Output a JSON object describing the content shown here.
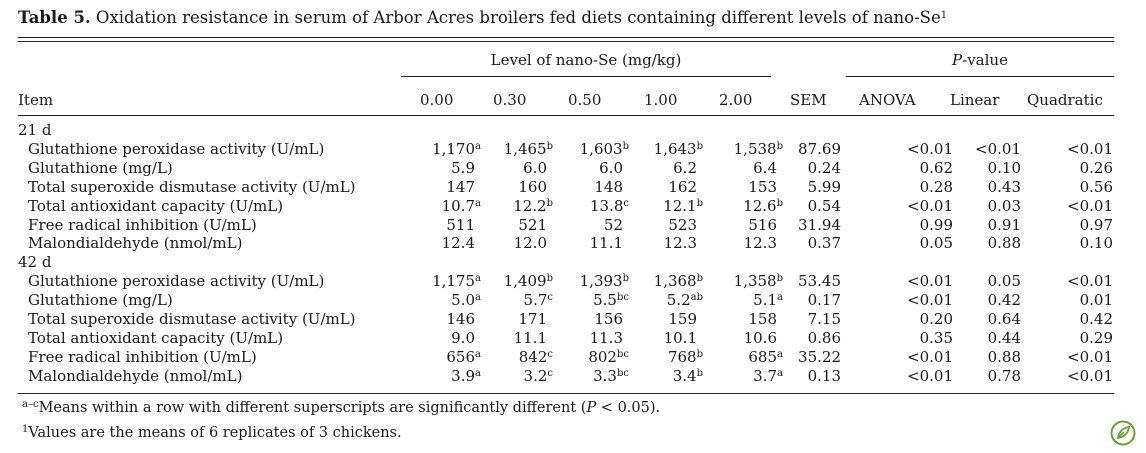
{
  "caption": {
    "label": "Table 5.",
    "text": "Oxidation resistance in serum of Arbor Acres broilers fed diets containing different levels of nano-Se",
    "sup": "1"
  },
  "header": {
    "group_level": "Level of nano-Se (mg/kg)",
    "group_p_italic": "P",
    "group_p_rest": "-value",
    "item": "Item",
    "levels": [
      "0.00",
      "0.30",
      "0.50",
      "1.00",
      "2.00"
    ],
    "sem": "SEM",
    "anova": "ANOVA",
    "linear": "Linear",
    "quadratic": "Quadratic"
  },
  "sections": [
    {
      "label": "21 d",
      "rows": [
        {
          "item": "Glutathione peroxidase activity (U/mL)",
          "v": [
            [
              "1,170",
              "a"
            ],
            [
              "1,465",
              "b"
            ],
            [
              "1,603",
              "b"
            ],
            [
              "1,643",
              "b"
            ],
            [
              "1,538",
              "b"
            ]
          ],
          "sem": "87.69",
          "anova": "<0.01",
          "linear": "<0.01",
          "quad": "<0.01"
        },
        {
          "item": "Glutathione (mg/L)",
          "v": [
            [
              "5.9",
              ""
            ],
            [
              "6.0",
              ""
            ],
            [
              "6.0",
              ""
            ],
            [
              "6.2",
              ""
            ],
            [
              "6.4",
              ""
            ]
          ],
          "sem": "0.24",
          "anova": "0.62",
          "linear": "0.10",
          "quad": "0.26"
        },
        {
          "item": "Total superoxide dismutase activity (U/mL)",
          "v": [
            [
              "147",
              ""
            ],
            [
              "160",
              ""
            ],
            [
              "148",
              ""
            ],
            [
              "162",
              ""
            ],
            [
              "153",
              ""
            ]
          ],
          "sem": "5.99",
          "anova": "0.28",
          "linear": "0.43",
          "quad": "0.56"
        },
        {
          "item": "Total antioxidant capacity (U/mL)",
          "v": [
            [
              "10.7",
              "a"
            ],
            [
              "12.2",
              "b"
            ],
            [
              "13.8",
              "c"
            ],
            [
              "12.1",
              "b"
            ],
            [
              "12.6",
              "b"
            ]
          ],
          "sem": "0.54",
          "anova": "<0.01",
          "linear": "0.03",
          "quad": "<0.01"
        },
        {
          "item": "Free radical inhibition (U/mL)",
          "v": [
            [
              "511",
              ""
            ],
            [
              "521",
              ""
            ],
            [
              "52",
              ""
            ],
            [
              "523",
              ""
            ],
            [
              "516",
              ""
            ]
          ],
          "sem": "31.94",
          "anova": "0.99",
          "linear": "0.91",
          "quad": "0.97"
        },
        {
          "item": "Malondialdehyde (nmol/mL)",
          "v": [
            [
              "12.4",
              ""
            ],
            [
              "12.0",
              ""
            ],
            [
              "11.1",
              ""
            ],
            [
              "12.3",
              ""
            ],
            [
              "12.3",
              ""
            ]
          ],
          "sem": "0.37",
          "anova": "0.05",
          "linear": "0.88",
          "quad": "0.10"
        }
      ]
    },
    {
      "label": "42 d",
      "rows": [
        {
          "item": "Glutathione peroxidase activity (U/mL)",
          "v": [
            [
              "1,175",
              "a"
            ],
            [
              "1,409",
              "b"
            ],
            [
              "1,393",
              "b"
            ],
            [
              "1,368",
              "b"
            ],
            [
              "1,358",
              "b"
            ]
          ],
          "sem": "53.45",
          "anova": "<0.01",
          "linear": "0.05",
          "quad": "<0.01"
        },
        {
          "item": "Glutathione (mg/L)",
          "v": [
            [
              "5.0",
              "a"
            ],
            [
              "5.7",
              "c"
            ],
            [
              "5.5",
              "bc"
            ],
            [
              "5.2",
              "ab"
            ],
            [
              "5.1",
              "a"
            ]
          ],
          "sem": "0.17",
          "anova": "<0.01",
          "linear": "0.42",
          "quad": "0.01"
        },
        {
          "item": "Total superoxide dismutase activity (U/mL)",
          "v": [
            [
              "146",
              ""
            ],
            [
              "171",
              ""
            ],
            [
              "156",
              ""
            ],
            [
              "159",
              ""
            ],
            [
              "158",
              ""
            ]
          ],
          "sem": "7.15",
          "anova": "0.20",
          "linear": "0.64",
          "quad": "0.42"
        },
        {
          "item": "Total antioxidant capacity (U/mL)",
          "v": [
            [
              "9.0",
              ""
            ],
            [
              "11.1",
              ""
            ],
            [
              "11.3",
              ""
            ],
            [
              "10.1",
              ""
            ],
            [
              "10.6",
              ""
            ]
          ],
          "sem": "0.86",
          "anova": "0.35",
          "linear": "0.44",
          "quad": "0.29"
        },
        {
          "item": "Free radical inhibition (U/mL)",
          "v": [
            [
              "656",
              "a"
            ],
            [
              "842",
              "c"
            ],
            [
              "802",
              "bc"
            ],
            [
              "768",
              "b"
            ],
            [
              "685",
              "a"
            ]
          ],
          "sem": "35.22",
          "anova": "<0.01",
          "linear": "0.88",
          "quad": "<0.01"
        },
        {
          "item": "Malondialdehyde (nmol/mL)",
          "v": [
            [
              "3.9",
              "a"
            ],
            [
              "3.2",
              "c"
            ],
            [
              "3.3",
              "bc"
            ],
            [
              "3.4",
              "b"
            ],
            [
              "3.7",
              "a"
            ]
          ],
          "sem": "0.13",
          "anova": "<0.01",
          "linear": "0.78",
          "quad": "<0.01"
        }
      ]
    }
  ],
  "notes": {
    "n1_sup": "a–c",
    "n1_text_a": "Means within a row with different superscripts are significantly different (",
    "n1_p": "P",
    "n1_text_b": " < 0.05).",
    "n2_sup": "1",
    "n2_text": "Values are the means of 6 replicates of 3 chickens."
  },
  "logo_icon": "leaf-logo-icon",
  "logo_color": "#6aa33a"
}
